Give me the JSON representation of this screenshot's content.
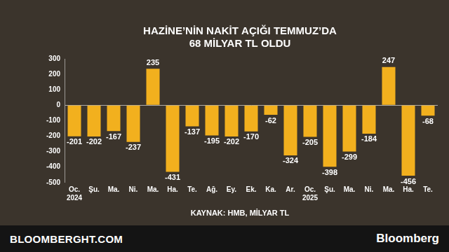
{
  "chart_data": {
    "type": "bar",
    "title": [
      "HAZİNE’NİN NAKİT AÇIĞI TEMMUZ’DA",
      "68 MİLYAR TL OLDU"
    ],
    "source": "KAYNAK: HMB, MİLYAR TL",
    "annotations": [
      "BLOOMBERGHT.COM",
      "Bloomberg"
    ],
    "categories": [
      "Oc. 2024",
      "Şu.",
      "Ma.",
      "Ni.",
      "Ma.",
      "Ha.",
      "Te.",
      "Ağ.",
      "Ey.",
      "Ek.",
      "Ka.",
      "Ar.",
      "Oc. 2025",
      "Şu.",
      "Ma.",
      "Ni.",
      "Ma.",
      "Ha.",
      "Te."
    ],
    "values": [
      -201,
      -202,
      -167,
      -237,
      235,
      -431,
      -137,
      -195,
      -202,
      -170,
      -62,
      -324,
      -205,
      -398,
      -299,
      -184,
      247,
      -456,
      -68
    ],
    "color": "#f2b01e",
    "ylim": [
      -500,
      300
    ],
    "yticks": [
      -500,
      -400,
      -300,
      -200,
      -100,
      0,
      100,
      200,
      300
    ],
    "grid": false,
    "data_labels": true
  }
}
